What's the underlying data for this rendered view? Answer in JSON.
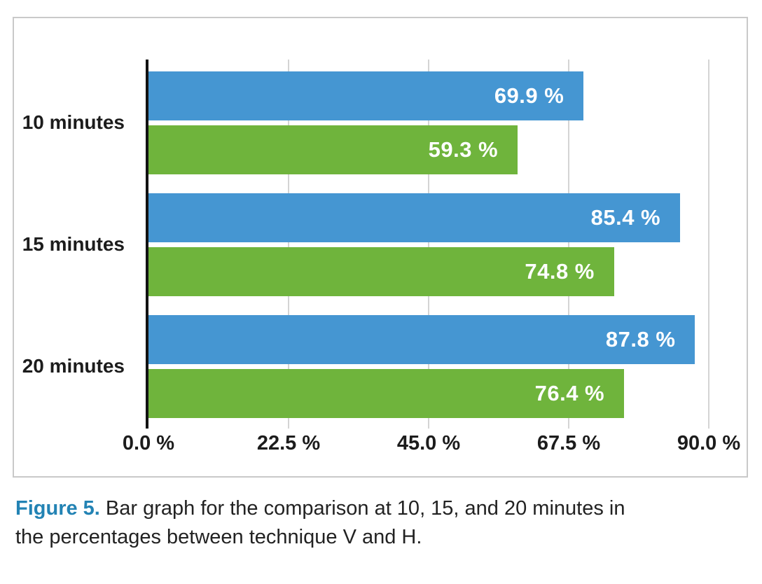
{
  "caption": {
    "prefix": "Figure 5.",
    "line1": "Bar graph for the comparison at 10, 15, and 20 minutes in",
    "line2": "the percentages between technique V and H.",
    "full_text": "Figure 5. Bar graph for the comparison at 10, 15, and 20 minutes in the percentages between technique V and H."
  },
  "colors": {
    "bar_blue": "#4596d2",
    "bar_green": "#6fb43c",
    "caption_accent": "#2383b4",
    "gridline": "#d4d4d4",
    "panel_border": "#c9c9c9",
    "axis": "#121212",
    "value_label": "#ffffff",
    "text": "#1c1c1c"
  },
  "chart_data": {
    "type": "bar",
    "orientation": "horizontal",
    "title": "",
    "xlabel": "",
    "ylabel": "",
    "categories": [
      "10 minutes",
      "15 minutes",
      "20 minutes"
    ],
    "series": [
      {
        "key": "technique-v",
        "name": "Technique V",
        "color": "#4596d2",
        "values": [
          69.9,
          85.4,
          87.8
        ],
        "labels": [
          "69.9 %",
          "85.4 %",
          "87.8 %"
        ]
      },
      {
        "key": "technique-h",
        "name": "Technique H",
        "color": "#6fb43c",
        "values": [
          59.3,
          74.8,
          76.4
        ],
        "labels": [
          "59.3 %",
          "74.8 %",
          "76.4 %"
        ]
      }
    ],
    "x_ticks": [
      {
        "value": 0,
        "label": "0.0 %"
      },
      {
        "value": 22.5,
        "label": "22.5 %"
      },
      {
        "value": 45,
        "label": "45.0 %"
      },
      {
        "value": 67.5,
        "label": "67.5 %"
      },
      {
        "value": 90,
        "label": "90.0 %"
      }
    ],
    "xlim": [
      0,
      90
    ],
    "grid": "vertical-gridlines",
    "legend_position": "none",
    "value_labels_inside_bars": true
  }
}
